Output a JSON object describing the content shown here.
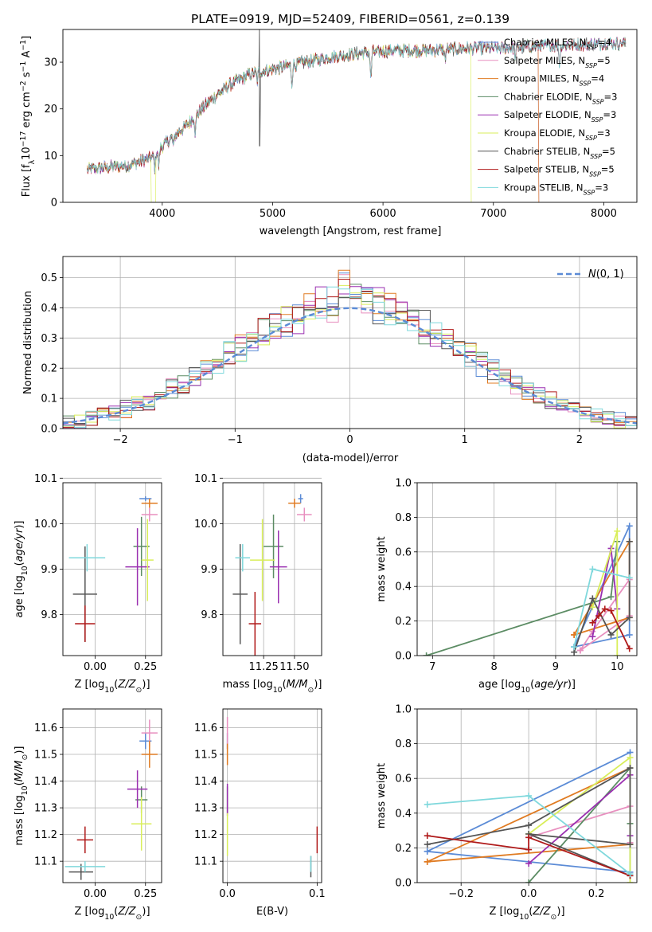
{
  "title": "PLATE=0919, MJD=52409, FIBERID=0561, z=0.139",
  "colors": {
    "Chabrier MILES": "#5b8bd6",
    "Salpeter MILES": "#e88fbf",
    "Kroupa MILES": "#e07b22",
    "Chabrier ELODIE": "#5c8c64",
    "Salpeter ELODIE": "#9a2fb0",
    "Kroupa ELODIE": "#d9ee5a",
    "Chabrier STELIB": "#555555",
    "Salpeter STELIB": "#b01a1a",
    "Kroupa STELIB": "#7fd8dc",
    "normal": "#5b8bd6"
  },
  "chart_data": [
    {
      "id": "spectrum",
      "type": "line",
      "xlabel": "wavelength [Angstrom, rest frame]",
      "ylabel": "Flux [f_λ 10^-17 erg cm^-2 s^-1 A^-1]",
      "xlim": [
        3100,
        8300
      ],
      "ylim": [
        0,
        37
      ],
      "xticks": [
        4000,
        5000,
        6000,
        7000,
        8000
      ],
      "yticks": [
        0,
        10,
        20,
        30
      ],
      "grid": false,
      "legend_position": "top-right",
      "legend": [
        "Chabrier MILES, N_SSP=4",
        "Salpeter MILES, N_SSP=5",
        "Kroupa MILES, N_SSP=4",
        "Chabrier ELODIE, N_SSP=3",
        "Salpeter ELODIE, N_SSP=3",
        "Kroupa ELODIE, N_SSP=3",
        "Chabrier STELIB, N_SSP=5",
        "Salpeter STELIB, N_SSP=5",
        "Kroupa STELIB, N_SSP=3"
      ],
      "continuum": [
        [
          3320,
          7
        ],
        [
          3500,
          7.5
        ],
        [
          3700,
          8
        ],
        [
          3900,
          9.5
        ],
        [
          4000,
          12
        ],
        [
          4200,
          16
        ],
        [
          4400,
          21
        ],
        [
          4600,
          25
        ],
        [
          4800,
          27.5
        ],
        [
          5000,
          28.5
        ],
        [
          5200,
          29.5
        ],
        [
          5500,
          31
        ],
        [
          5800,
          32
        ],
        [
          6100,
          32.5
        ],
        [
          6400,
          32.5
        ],
        [
          6800,
          33
        ],
        [
          7100,
          33
        ],
        [
          7500,
          33.5
        ],
        [
          8000,
          34
        ],
        [
          8200,
          34
        ]
      ],
      "features": [
        [
          3933,
          -3
        ],
        [
          3968,
          -3.5
        ],
        [
          4102,
          -2
        ],
        [
          4300,
          -3.5
        ],
        [
          4861,
          -2
        ],
        [
          5175,
          -4
        ],
        [
          5890,
          -6
        ],
        [
          6563,
          -2
        ],
        [
          7200,
          -2
        ],
        [
          7600,
          -4
        ]
      ],
      "spikes": [
        [
          4880,
          37
        ],
        [
          4885,
          12
        ]
      ],
      "cutoffs": [
        [
          "Kroupa ELODIE",
          3920,
          "low"
        ],
        [
          "Kroupa ELODIE",
          6800,
          "high"
        ],
        [
          "Chabrier MILES",
          7410,
          "high"
        ],
        [
          "Salpeter MILES",
          7410,
          "high"
        ],
        [
          "Kroupa MILES",
          7410,
          "high"
        ]
      ]
    },
    {
      "id": "residual-histogram",
      "type": "bar",
      "xlabel": "(data-model)/error",
      "ylabel": "Normed distribution",
      "xlim": [
        -2.5,
        2.5
      ],
      "ylim": [
        0,
        0.57
      ],
      "xticks": [
        -2,
        -1,
        0,
        1,
        2
      ],
      "yticks": [
        0.0,
        0.1,
        0.2,
        0.3,
        0.4,
        0.5
      ],
      "grid": true,
      "legend_position": "top-right",
      "legend": [
        "N(0,1)"
      ],
      "bin_edges_start": -2.5,
      "bin_width": 0.1
    },
    {
      "id": "age-vs-Z",
      "type": "scatter",
      "xlabel": "Z [log10(Z/Z⊙)]",
      "ylabel": "age [log10(age/yr)]",
      "xlim": [
        -0.16,
        0.33
      ],
      "ylim": [
        9.71,
        10.09
      ],
      "xticks": [
        0.0,
        0.25
      ],
      "xticklabels": [
        "0.00",
        "0.25"
      ],
      "yticks": [
        9.8,
        9.9,
        10.0,
        10.1
      ],
      "grid": true,
      "points": [
        {
          "model": "Chabrier MILES",
          "x": 0.25,
          "y": 10.055,
          "xerr": 0.03,
          "yerr": 0.005
        },
        {
          "model": "Salpeter MILES",
          "x": 0.27,
          "y": 10.02,
          "xerr": 0.04,
          "yerr": 0.015
        },
        {
          "model": "Kroupa MILES",
          "x": 0.27,
          "y": 10.045,
          "xerr": 0.04,
          "yerr": 0.01
        },
        {
          "model": "Chabrier ELODIE",
          "x": 0.23,
          "y": 9.95,
          "xerr": 0.04,
          "yerr": 0.065
        },
        {
          "model": "Salpeter ELODIE",
          "x": 0.21,
          "y": 9.905,
          "xerr": 0.06,
          "yerr": 0.085
        },
        {
          "model": "Kroupa ELODIE",
          "x": 0.26,
          "y": 9.92,
          "xerr": 0.03,
          "yerr": 0.09
        },
        {
          "model": "Chabrier STELIB",
          "x": -0.05,
          "y": 9.845,
          "xerr": 0.06,
          "yerr": 0.105
        },
        {
          "model": "Salpeter STELIB",
          "x": -0.05,
          "y": 9.78,
          "xerr": 0.05,
          "yerr": 0.04
        },
        {
          "model": "Kroupa STELIB",
          "x": -0.04,
          "y": 9.925,
          "xerr": 0.09,
          "yerr": 0.03
        }
      ]
    },
    {
      "id": "age-vs-mass",
      "type": "scatter",
      "xlabel": "mass [log10(M/M⊙)]",
      "ylabel": "",
      "xlim": [
        10.92,
        11.72
      ],
      "ylim": [
        9.71,
        10.09
      ],
      "xticks": [
        11.25,
        11.5
      ],
      "xticklabels": [
        "11.25",
        "11.50"
      ],
      "yticks": [
        9.8,
        9.9,
        10.0,
        10.1
      ],
      "grid": true,
      "points": [
        {
          "model": "Chabrier MILES",
          "x": 11.55,
          "y": 10.055,
          "xerr": 0.02,
          "yerr": 0.01
        },
        {
          "model": "Salpeter MILES",
          "x": 11.58,
          "y": 10.02,
          "xerr": 0.06,
          "yerr": 0.015
        },
        {
          "model": "Kroupa MILES",
          "x": 11.5,
          "y": 10.045,
          "xerr": 0.05,
          "yerr": 0.01
        },
        {
          "model": "Chabrier ELODIE",
          "x": 11.33,
          "y": 9.95,
          "xerr": 0.08,
          "yerr": 0.07
        },
        {
          "model": "Salpeter ELODIE",
          "x": 11.37,
          "y": 9.905,
          "xerr": 0.07,
          "yerr": 0.08
        },
        {
          "model": "Kroupa ELODIE",
          "x": 11.24,
          "y": 9.92,
          "xerr": 0.1,
          "yerr": 0.09
        },
        {
          "model": "Chabrier STELIB",
          "x": 11.06,
          "y": 9.845,
          "xerr": 0.06,
          "yerr": 0.11
        },
        {
          "model": "Salpeter STELIB",
          "x": 11.18,
          "y": 9.78,
          "xerr": 0.05,
          "yerr": 0.07
        },
        {
          "model": "Kroupa STELIB",
          "x": 11.08,
          "y": 9.925,
          "xerr": 0.06,
          "yerr": 0.03
        }
      ]
    },
    {
      "id": "mass-weight-vs-age",
      "type": "line",
      "xlabel": "age [log10(age/yr)]",
      "ylabel": "mass weight",
      "xlim": [
        6.75,
        10.32
      ],
      "ylim": [
        0,
        1.0
      ],
      "xticks": [
        7,
        8,
        9,
        10
      ],
      "yticks": [
        0.0,
        0.2,
        0.4,
        0.6,
        0.8,
        1.0
      ],
      "grid": true,
      "series": [
        {
          "name": "Chabrier MILES",
          "x": [
            9.3,
            10.2,
            10.2,
            9.3
          ],
          "y": [
            0.05,
            0.75,
            0.12,
            0.05
          ]
        },
        {
          "name": "Salpeter MILES",
          "x": [
            9.4,
            9.6,
            10.2,
            10.2,
            9.4
          ],
          "y": [
            0.03,
            0.14,
            0.44,
            0.23,
            0.03
          ]
        },
        {
          "name": "Kroupa MILES",
          "x": [
            9.3,
            10.2,
            10.2,
            9.3
          ],
          "y": [
            0.12,
            0.66,
            0.22,
            0.12
          ]
        },
        {
          "name": "Chabrier ELODIE",
          "x": [
            6.9,
            9.9,
            10.0
          ],
          "y": [
            0.0,
            0.34,
            0.66
          ]
        },
        {
          "name": "Salpeter ELODIE",
          "x": [
            9.6,
            9.9,
            10.0
          ],
          "y": [
            0.11,
            0.62,
            0.27
          ]
        },
        {
          "name": "Kroupa ELODIE",
          "x": [
            9.6,
            10.0,
            10.0
          ],
          "y": [
            0.28,
            0.72,
            0.0
          ]
        },
        {
          "name": "Chabrier STELIB",
          "x": [
            9.3,
            9.6,
            9.9,
            10.2,
            10.2
          ],
          "y": [
            0.02,
            0.33,
            0.12,
            0.22,
            0.66
          ]
        },
        {
          "name": "Salpeter STELIB",
          "x": [
            9.6,
            9.7,
            9.8,
            9.9,
            10.2
          ],
          "y": [
            0.19,
            0.23,
            0.27,
            0.26,
            0.04
          ]
        },
        {
          "name": "Kroupa STELIB",
          "x": [
            9.3,
            9.6,
            10.2
          ],
          "y": [
            0.05,
            0.5,
            0.45
          ]
        }
      ]
    },
    {
      "id": "mass-vs-Z",
      "type": "scatter",
      "xlabel": "Z [log10(Z/Z⊙)]",
      "ylabel": "mass [log10(M/M⊙)]",
      "xlim": [
        -0.16,
        0.33
      ],
      "ylim": [
        11.02,
        11.67
      ],
      "xticks": [
        0.0,
        0.25
      ],
      "xticklabels": [
        "0.00",
        "0.25"
      ],
      "yticks": [
        11.1,
        11.2,
        11.3,
        11.4,
        11.5,
        11.6
      ],
      "grid": true,
      "points": [
        {
          "model": "Chabrier MILES",
          "x": 0.25,
          "y": 11.55,
          "xerr": 0.03,
          "yerr": 0.03
        },
        {
          "model": "Salpeter MILES",
          "x": 0.27,
          "y": 11.58,
          "xerr": 0.04,
          "yerr": 0.05
        },
        {
          "model": "Kroupa MILES",
          "x": 0.27,
          "y": 11.5,
          "xerr": 0.04,
          "yerr": 0.05
        },
        {
          "model": "Chabrier ELODIE",
          "x": 0.23,
          "y": 11.33,
          "xerr": 0.03,
          "yerr": 0.05
        },
        {
          "model": "Salpeter ELODIE",
          "x": 0.21,
          "y": 11.37,
          "xerr": 0.05,
          "yerr": 0.07
        },
        {
          "model": "Kroupa ELODIE",
          "x": 0.23,
          "y": 11.24,
          "xerr": 0.05,
          "yerr": 0.1
        },
        {
          "model": "Chabrier STELIB",
          "x": -0.07,
          "y": 11.06,
          "xerr": 0.06,
          "yerr": 0.03
        },
        {
          "model": "Salpeter STELIB",
          "x": -0.05,
          "y": 11.18,
          "xerr": 0.04,
          "yerr": 0.05
        },
        {
          "model": "Kroupa STELIB",
          "x": -0.05,
          "y": 11.08,
          "xerr": 0.1,
          "yerr": 0.02
        }
      ]
    },
    {
      "id": "mass-vs-EBV",
      "type": "scatter",
      "xlabel": "E(B-V)",
      "ylabel": "",
      "xlim": [
        -0.005,
        0.105
      ],
      "ylim": [
        11.02,
        11.67
      ],
      "xticks": [
        0.0,
        0.1
      ],
      "xticklabels": [
        "0.0",
        "0.1"
      ],
      "yticks": [
        11.1,
        11.2,
        11.3,
        11.4,
        11.5,
        11.6
      ],
      "grid": true,
      "points": [
        {
          "model": "Chabrier MILES",
          "x": 0.0,
          "y": 11.55,
          "xerr": 0,
          "yerr": 0.03
        },
        {
          "model": "Salpeter MILES",
          "x": 0.0,
          "y": 11.58,
          "xerr": 0,
          "yerr": 0.06
        },
        {
          "model": "Kroupa MILES",
          "x": 0.0,
          "y": 11.5,
          "xerr": 0,
          "yerr": 0.04
        },
        {
          "model": "Chabrier ELODIE",
          "x": 0.0,
          "y": 11.33,
          "xerr": 0,
          "yerr": 0.05
        },
        {
          "model": "Salpeter ELODIE",
          "x": 0.0,
          "y": 11.33,
          "xerr": 0,
          "yerr": 0.06
        },
        {
          "model": "Kroupa ELODIE",
          "x": 0.0,
          "y": 11.2,
          "xerr": 0,
          "yerr": 0.08
        },
        {
          "model": "Chabrier STELIB",
          "x": 0.093,
          "y": 11.08,
          "xerr": 0,
          "yerr": 0.04
        },
        {
          "model": "Salpeter STELIB",
          "x": 0.1,
          "y": 11.18,
          "xerr": 0,
          "yerr": 0.05
        },
        {
          "model": "Kroupa STELIB",
          "x": 0.093,
          "y": 11.09,
          "xerr": 0,
          "yerr": 0.03
        }
      ]
    },
    {
      "id": "mass-weight-vs-Z",
      "type": "line",
      "xlabel": "Z [log10(Z/Z⊙)]",
      "ylabel": "mass weight",
      "xlim": [
        -0.33,
        0.32
      ],
      "ylim": [
        0,
        1.0
      ],
      "xticks": [
        -0.2,
        0.0,
        0.2
      ],
      "xticklabels": [
        "−0.2",
        "0.0",
        "0.2"
      ],
      "yticks": [
        0.0,
        0.2,
        0.4,
        0.6,
        0.8,
        1.0
      ],
      "grid": true,
      "series": [
        {
          "name": "Chabrier MILES",
          "x": [
            -0.3,
            0.3,
            0.3,
            -0.3
          ],
          "y": [
            0.18,
            0.75,
            0.06,
            0.18
          ]
        },
        {
          "name": "Salpeter MILES",
          "x": [
            0.0,
            0.3,
            0.3
          ],
          "y": [
            0.26,
            0.44,
            0.23
          ]
        },
        {
          "name": "Kroupa MILES",
          "x": [
            -0.3,
            0.3,
            0.3,
            -0.3
          ],
          "y": [
            0.12,
            0.66,
            0.22,
            0.12
          ]
        },
        {
          "name": "Chabrier ELODIE",
          "x": [
            0.0,
            0.3,
            0.3
          ],
          "y": [
            0.0,
            0.66,
            0.34
          ]
        },
        {
          "name": "Salpeter ELODIE",
          "x": [
            0.0,
            0.3,
            0.3
          ],
          "y": [
            0.11,
            0.62,
            0.27
          ]
        },
        {
          "name": "Kroupa ELODIE",
          "x": [
            0.0,
            0.3,
            0.3
          ],
          "y": [
            0.28,
            0.72,
            0.0
          ]
        },
        {
          "name": "Chabrier STELIB",
          "x": [
            -0.3,
            0.0,
            0.3,
            0.3,
            0.0,
            0.3
          ],
          "y": [
            0.22,
            0.33,
            0.66,
            0.22,
            0.28,
            0.04
          ]
        },
        {
          "name": "Salpeter STELIB",
          "x": [
            -0.3,
            0.0,
            0.0,
            0.3
          ],
          "y": [
            0.27,
            0.19,
            0.26,
            0.04
          ]
        },
        {
          "name": "Kroupa STELIB",
          "x": [
            -0.3,
            0.0,
            0.3
          ],
          "y": [
            0.45,
            0.5,
            0.05
          ]
        }
      ]
    }
  ]
}
